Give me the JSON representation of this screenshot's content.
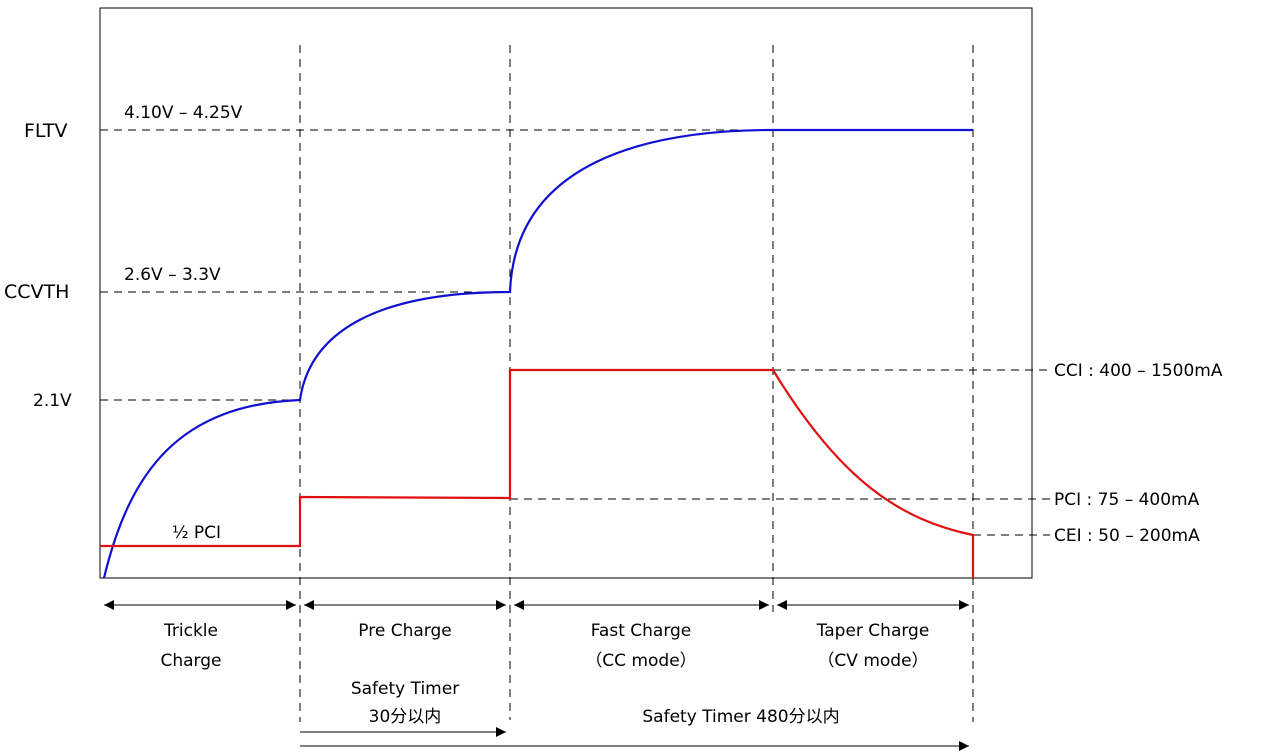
{
  "y_levels": {
    "fltv": "FLTV",
    "ccvth": "CCVTH",
    "v21": "2.1V"
  },
  "level_ranges": {
    "fltv_range": "4.10V – 4.25V",
    "ccvth_range": "2.6V – 3.3V"
  },
  "current_labels": {
    "cci": "CCI : 400 – 1500mA",
    "pci": "PCI : 75 – 400mA",
    "cei": "CEI : 50 – 200mA",
    "half_pci": "½ PCI"
  },
  "phases": [
    {
      "line1": "Trickle",
      "line2": "Charge"
    },
    {
      "line1": "Pre Charge",
      "line2": ""
    },
    {
      "line1": "Fast Charge",
      "line2": "（CC mode）"
    },
    {
      "line1": "Taper Charge",
      "line2": "（CV mode）"
    }
  ],
  "timers": {
    "pre_line1": "Safety Timer",
    "pre_line2": "30分以内",
    "total": "Safety Timer 480分以内"
  },
  "colors": {
    "voltage": "#1010d0",
    "current": "#e01010",
    "line": "#000000"
  }
}
